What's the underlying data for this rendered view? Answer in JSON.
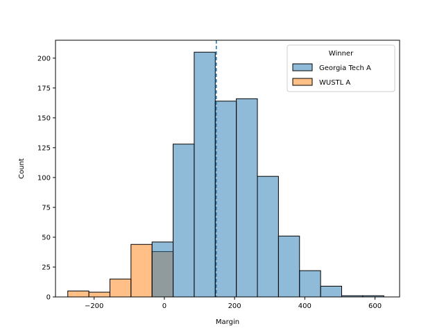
{
  "chart_data": {
    "type": "bar",
    "xlabel": "Margin",
    "ylabel": "Count",
    "xlim": [
      -310,
      670
    ],
    "ylim": [
      0,
      215
    ],
    "x_ticks": [
      -200,
      0,
      200,
      400,
      600
    ],
    "y_ticks": [
      0,
      25,
      50,
      75,
      100,
      125,
      150,
      175,
      200
    ],
    "vline": {
      "x": 148,
      "color": "#1f77b4",
      "style": "dashed"
    },
    "legend": {
      "title": "Winner",
      "position": "top-right"
    },
    "series": [
      {
        "name": "Georgia Tech A",
        "color": "#1f77b4",
        "bins": [
          {
            "x0": -35,
            "x1": 25,
            "count": 46
          },
          {
            "x0": 25,
            "x1": 85,
            "count": 128
          },
          {
            "x0": 85,
            "x1": 145,
            "count": 205
          },
          {
            "x0": 145,
            "x1": 205,
            "count": 164
          },
          {
            "x0": 205,
            "x1": 265,
            "count": 166
          },
          {
            "x0": 265,
            "x1": 325,
            "count": 101
          },
          {
            "x0": 325,
            "x1": 385,
            "count": 51
          },
          {
            "x0": 385,
            "x1": 445,
            "count": 22
          },
          {
            "x0": 445,
            "x1": 505,
            "count": 9
          },
          {
            "x0": 505,
            "x1": 565,
            "count": 1
          },
          {
            "x0": 565,
            "x1": 625,
            "count": 1
          }
        ]
      },
      {
        "name": "WUSTL A",
        "color": "#ff7f0e",
        "bins": [
          {
            "x0": -275,
            "x1": -215,
            "count": 5
          },
          {
            "x0": -215,
            "x1": -155,
            "count": 4
          },
          {
            "x0": -155,
            "x1": -95,
            "count": 15
          },
          {
            "x0": -95,
            "x1": -35,
            "count": 44
          },
          {
            "x0": -35,
            "x1": 25,
            "count": 38
          }
        ]
      }
    ]
  }
}
